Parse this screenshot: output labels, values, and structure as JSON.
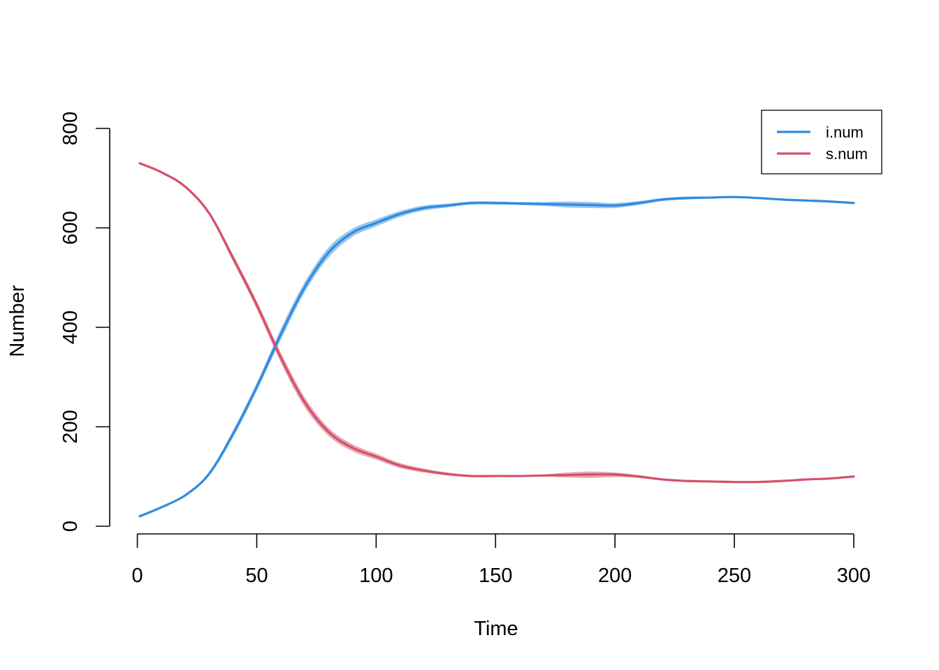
{
  "chart_data": {
    "type": "line",
    "title": "",
    "xlabel": "Time",
    "ylabel": "Number",
    "xlim": [
      1,
      300
    ],
    "ylim": [
      0,
      800
    ],
    "x_ticks": [
      "0",
      "50",
      "100",
      "150",
      "200",
      "250",
      "300"
    ],
    "y_ticks": [
      "0",
      "200",
      "400",
      "600",
      "800"
    ],
    "legend_position": "top-right",
    "series": [
      {
        "name": "i.num",
        "color": "#2f8be0",
        "band_color": "#2f8be0",
        "x": [
          1,
          10,
          20,
          30,
          40,
          50,
          60,
          70,
          80,
          90,
          100,
          110,
          120,
          130,
          140,
          150,
          160,
          170,
          180,
          190,
          200,
          210,
          220,
          230,
          240,
          250,
          260,
          270,
          280,
          290,
          300
        ],
        "y": [
          20,
          38,
          62,
          105,
          185,
          280,
          385,
          480,
          550,
          590,
          610,
          628,
          640,
          645,
          650,
          650,
          649,
          648,
          647,
          646,
          645,
          650,
          657,
          660,
          661,
          662,
          660,
          657,
          655,
          653,
          650
        ],
        "lower": [
          20,
          37,
          60,
          101,
          178,
          272,
          374,
          470,
          540,
          582,
          603,
          622,
          635,
          641,
          647,
          647,
          646,
          644,
          641,
          640,
          640,
          646,
          654,
          657,
          659,
          660,
          658,
          655,
          653,
          651,
          649
        ],
        "upper": [
          21,
          39,
          64,
          109,
          192,
          288,
          396,
          490,
          560,
          598,
          617,
          634,
          645,
          649,
          653,
          653,
          652,
          652,
          653,
          652,
          650,
          654,
          660,
          663,
          663,
          664,
          662,
          659,
          657,
          655,
          651
        ]
      },
      {
        "name": "s.num",
        "color": "#d4506a",
        "band_color": "#d4506a",
        "x": [
          1,
          10,
          20,
          30,
          40,
          50,
          60,
          70,
          80,
          90,
          100,
          110,
          120,
          130,
          140,
          150,
          160,
          170,
          180,
          190,
          200,
          210,
          220,
          230,
          240,
          250,
          260,
          270,
          280,
          290,
          300
        ],
        "y": [
          730,
          712,
          683,
          630,
          540,
          445,
          340,
          250,
          190,
          158,
          140,
          122,
          112,
          105,
          101,
          101,
          101,
          102,
          103,
          104,
          104,
          100,
          94,
          91,
          90,
          89,
          89,
          91,
          94,
          96,
          100
        ],
        "lower": [
          729,
          711,
          681,
          626,
          533,
          437,
          330,
          240,
          182,
          151,
          134,
          117,
          108,
          102,
          99,
          99,
          99,
          100,
          98,
          97,
          99,
          97,
          92,
          89,
          88,
          87,
          87,
          89,
          92,
          95,
          99
        ],
        "upper": [
          731,
          713,
          685,
          634,
          547,
          453,
          350,
          260,
          198,
          165,
          146,
          127,
          116,
          108,
          103,
          103,
          103,
          104,
          108,
          110,
          108,
          103,
          96,
          93,
          92,
          91,
          91,
          93,
          96,
          97,
          101
        ]
      }
    ]
  }
}
